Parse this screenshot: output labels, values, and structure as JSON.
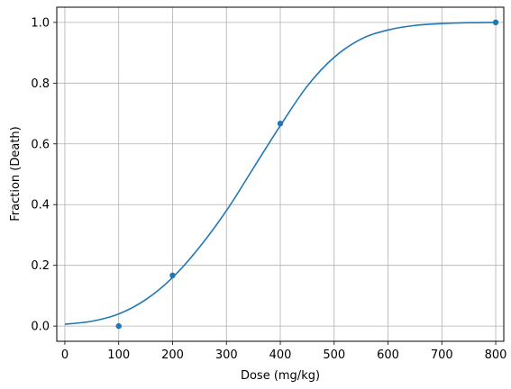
{
  "chart_data": {
    "type": "scatter",
    "title": "",
    "xlabel": "Dose (mg/kg)",
    "ylabel": "Fraction (Death)",
    "xlim": [
      -15,
      815
    ],
    "ylim": [
      -0.05,
      1.05
    ],
    "xticks": [
      0,
      100,
      200,
      300,
      400,
      500,
      600,
      700,
      800
    ],
    "yticks": [
      0.0,
      0.2,
      0.4,
      0.6,
      0.8,
      1.0
    ],
    "xtick_labels": [
      "0",
      "100",
      "200",
      "300",
      "400",
      "500",
      "600",
      "700",
      "800"
    ],
    "ytick_labels": [
      "0.0",
      "0.2",
      "0.4",
      "0.6",
      "0.8",
      "1.0"
    ],
    "grid": true,
    "series": [
      {
        "kind": "scatter",
        "color": "#1f77b4",
        "x": [
          100,
          200,
          400,
          800
        ],
        "y": [
          0.0,
          0.167,
          0.667,
          1.0
        ]
      },
      {
        "kind": "line",
        "color": "#1f77b4",
        "x": [
          0,
          50,
          100,
          150,
          200,
          250,
          300,
          350,
          400,
          450,
          500,
          550,
          600,
          650,
          700,
          750,
          800
        ],
        "y": [
          0.006,
          0.016,
          0.04,
          0.087,
          0.16,
          0.26,
          0.38,
          0.52,
          0.66,
          0.79,
          0.885,
          0.945,
          0.975,
          0.99,
          0.996,
          0.999,
          1.0
        ]
      }
    ]
  }
}
